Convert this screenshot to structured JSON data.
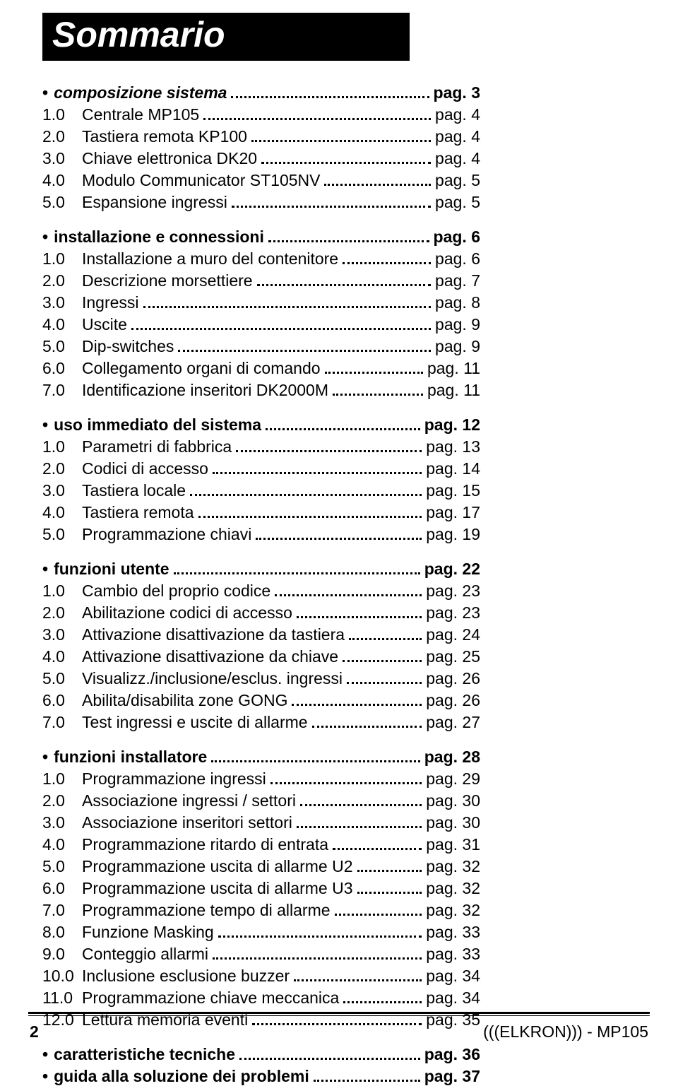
{
  "title": "Sommario",
  "sections": [
    {
      "bullet": "•",
      "label": "composizione sistema",
      "pg": "pag. 3",
      "italic": true,
      "items": [
        {
          "num": "1.0",
          "label": "Centrale MP105",
          "pg": "pag. 4"
        },
        {
          "num": "2.0",
          "label": "Tastiera remota KP100",
          "pg": "pag. 4"
        },
        {
          "num": "3.0",
          "label": "Chiave elettronica DK20",
          "pg": "pag. 4"
        },
        {
          "num": "4.0",
          "label": "Modulo Communicator ST105NV",
          "pg": "pag. 5"
        },
        {
          "num": "5.0",
          "label": "Espansione ingressi",
          "pg": "pag. 5"
        }
      ]
    },
    {
      "bullet": "•",
      "label": "installazione e connessioni",
      "pg": "pag. 6",
      "items": [
        {
          "num": "1.0",
          "label": "Installazione a muro del contenitore",
          "pg": "pag. 6"
        },
        {
          "num": "2.0",
          "label": "Descrizione morsettiere",
          "pg": "pag. 7"
        },
        {
          "num": "3.0",
          "label": "Ingressi",
          "pg": "pag. 8"
        },
        {
          "num": "4.0",
          "label": "Uscite",
          "pg": "pag. 9"
        },
        {
          "num": "5.0",
          "label": "Dip-switches",
          "pg": "pag. 9"
        },
        {
          "num": "6.0",
          "label": "Collegamento organi di comando",
          "pg": "pag. 11"
        },
        {
          "num": "7.0",
          "label": "Identificazione inseritori DK2000M",
          "pg": "pag. 11"
        }
      ]
    },
    {
      "bullet": "•",
      "label": "uso immediato del sistema",
      "pg": "pag. 12",
      "items": [
        {
          "num": "1.0",
          "label": "Parametri di fabbrica",
          "pg": "pag. 13"
        },
        {
          "num": "2.0",
          "label": "Codici di accesso",
          "pg": "pag. 14"
        },
        {
          "num": "3.0",
          "label": "Tastiera locale",
          "pg": "pag. 15"
        },
        {
          "num": "4.0",
          "label": "Tastiera remota",
          "pg": "pag. 17"
        },
        {
          "num": "5.0",
          "label": "Programmazione chiavi",
          "pg": "pag. 19"
        }
      ]
    },
    {
      "bullet": "•",
      "label": "funzioni utente",
      "pg": "pag. 22",
      "items": [
        {
          "num": "1.0",
          "label": "Cambio del proprio codice",
          "pg": "pag. 23"
        },
        {
          "num": "2.0",
          "label": "Abilitazione codici di accesso",
          "pg": "pag. 23"
        },
        {
          "num": "3.0",
          "label": "Attivazione disattivazione da tastiera",
          "pg": "pag. 24"
        },
        {
          "num": "4.0",
          "label": "Attivazione disattivazione da chiave",
          "pg": "pag. 25"
        },
        {
          "num": "5.0",
          "label": "Visualizz./inclusione/esclus. ingressi",
          "pg": "pag. 26"
        },
        {
          "num": "6.0",
          "label": "Abilita/disabilita zone GONG",
          "pg": "pag. 26"
        },
        {
          "num": "7.0",
          "label": "Test ingressi e uscite di allarme",
          "pg": "pag. 27"
        }
      ]
    },
    {
      "bullet": "•",
      "label": "funzioni installatore",
      "pg": "pag. 28",
      "items": [
        {
          "num": "1.0",
          "label": "Programmazione ingressi",
          "pg": "pag. 29"
        },
        {
          "num": "2.0",
          "label": "Associazione ingressi / settori",
          "pg": "pag. 30"
        },
        {
          "num": "3.0",
          "label": "Associazione inseritori settori",
          "pg": "pag. 30"
        },
        {
          "num": "4.0",
          "label": "Programmazione ritardo di entrata",
          "pg": "pag. 31"
        },
        {
          "num": "5.0",
          "label": "Programmazione uscita di allarme U2",
          "pg": "pag. 32"
        },
        {
          "num": "6.0",
          "label": "Programmazione uscita di allarme U3",
          "pg": "pag. 32"
        },
        {
          "num": "7.0",
          "label": "Programmazione tempo di allarme",
          "pg": "pag. 32"
        },
        {
          "num": "8.0",
          "label": "Funzione Masking",
          "pg": "pag. 33"
        },
        {
          "num": "9.0",
          "label": "Conteggio allarmi",
          "pg": "pag. 33"
        },
        {
          "num": "10.0",
          "label": "Inclusione esclusione buzzer",
          "pg": "pag. 34"
        },
        {
          "num": "11.0",
          "label": "Programmazione chiave meccanica",
          "pg": "pag. 34"
        },
        {
          "num": "12.0",
          "label": "Lettura memoria eventi",
          "pg": "pag. 35"
        }
      ]
    },
    {
      "bullet": "•",
      "label": "caratteristiche tecniche",
      "pg": "pag. 36",
      "items": []
    },
    {
      "bullet": "•",
      "label": "guida alla soluzione dei problemi",
      "pg": "pag. 37",
      "items": [],
      "tight": true
    }
  ],
  "footer": {
    "pagenum": "2",
    "brand": "(((ELKRON))) - MP105"
  }
}
